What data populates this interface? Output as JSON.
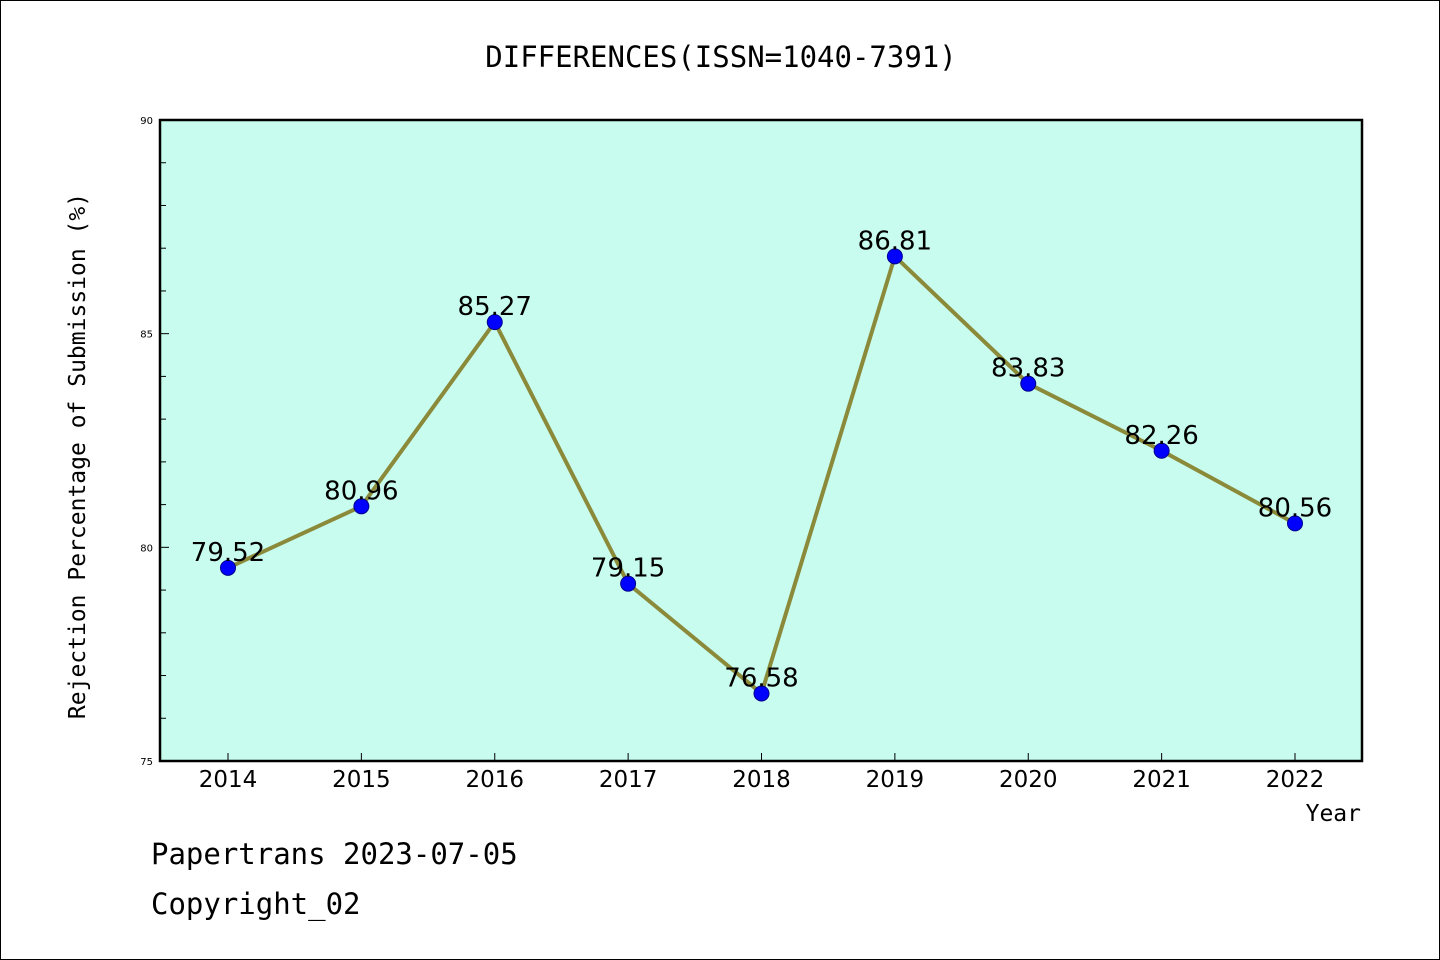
{
  "chart_data": {
    "type": "line",
    "title": "DIFFERENCES(ISSN=1040-7391)",
    "xlabel": "Year",
    "ylabel": "Rejection Percentage of Submission (%)",
    "categories": [
      "2014",
      "2015",
      "2016",
      "2017",
      "2018",
      "2019",
      "2020",
      "2021",
      "2022"
    ],
    "values": [
      79.52,
      80.96,
      85.27,
      79.15,
      76.58,
      86.81,
      83.83,
      82.26,
      80.56
    ],
    "data_labels": [
      "79.52",
      "80.96",
      "85.27",
      "79.15",
      "76.58",
      "86.81",
      "83.83",
      "82.26",
      "80.56"
    ],
    "ylim": [
      75,
      90
    ],
    "yticks": [
      75,
      80,
      85,
      90
    ],
    "grid": false,
    "legend": "none",
    "colors": {
      "plot_background": "#c8fcee",
      "line": "#8b8a3a",
      "marker": "#0000ff"
    }
  },
  "footer": {
    "line1": "Papertrans 2023-07-05",
    "line2": "Copyright_02"
  }
}
